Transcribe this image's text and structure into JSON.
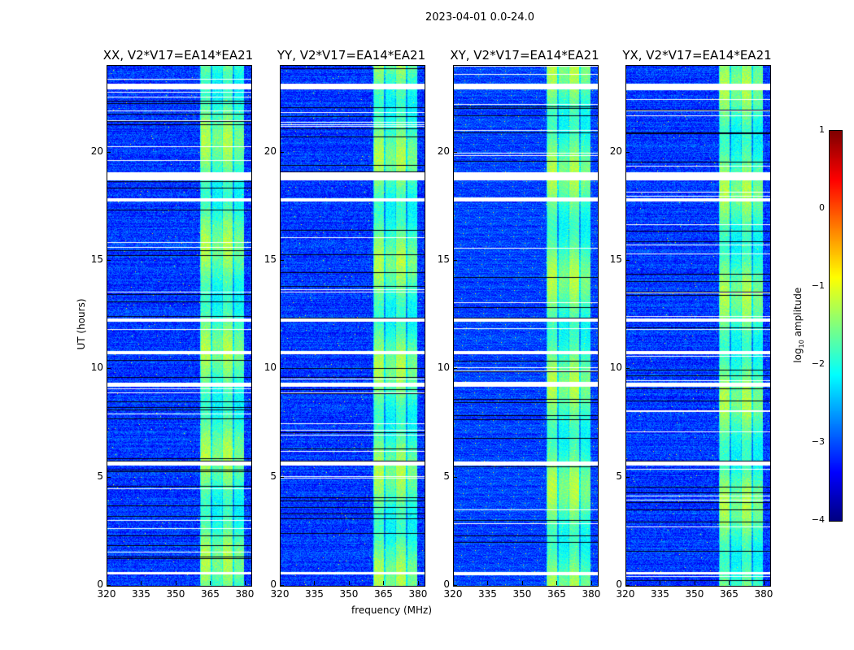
{
  "title": "2023-04-01 0.0-24.0",
  "chart_data": {
    "type": "heatmap",
    "title": "2023-04-01 0.0-24.0",
    "xlabel": "frequency (MHz)",
    "ylabel": "UT (hours)",
    "xlim": [
      320,
      382.5
    ],
    "ylim": [
      0,
      24
    ],
    "xticks": [
      "320",
      "335",
      "350",
      "365",
      "380"
    ],
    "xtick_values": [
      320,
      335,
      350,
      365,
      380
    ],
    "yticks": [
      "0",
      "5",
      "10",
      "15",
      "20"
    ],
    "ytick_values": [
      0,
      5,
      10,
      15,
      20
    ],
    "panels": [
      {
        "title": "XX, V2*V17=EA14*EA21",
        "seed": 11
      },
      {
        "title": "YY, V2*V17=EA14*EA21",
        "seed": 23
      },
      {
        "title": "XY, V2*V17=EA14*EA21",
        "seed": 37
      },
      {
        "title": "YX, V2*V17=EA14*EA21",
        "seed": 51
      }
    ],
    "background_log_amplitude": -3.1,
    "rfi_band_MHz": [
      360,
      379
    ],
    "rfi_band_log_amplitude": -1.6,
    "flagged_gaps_hours": [
      [
        22.95,
        23.2
      ],
      [
        18.75,
        19.1
      ],
      [
        17.75,
        17.9
      ],
      [
        12.2,
        12.35
      ],
      [
        10.72,
        10.85
      ],
      [
        9.2,
        9.4
      ],
      [
        5.55,
        5.75
      ],
      [
        0.55,
        0.65
      ]
    ],
    "colorbar": {
      "label": "log10 amplitude",
      "label_base": "log",
      "label_sub": "10",
      "label_rest": " amplitude",
      "range": [
        -4,
        1
      ],
      "ticks": [
        "1",
        "0",
        "−1",
        "−2",
        "−3",
        "−4"
      ],
      "tick_values": [
        1,
        0,
        -1,
        -2,
        -3,
        -4
      ],
      "colormap": "jet"
    }
  }
}
